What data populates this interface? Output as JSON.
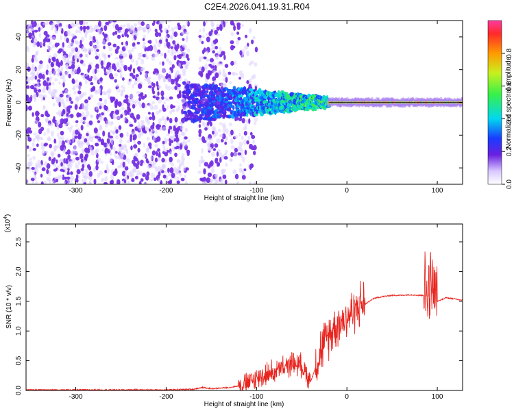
{
  "title": "C2E4.2026.041.19.31.R04",
  "colors": {
    "line": "#e8251f",
    "scatter_main": "#6a1fe0",
    "scatter_light": "#cfb6f5",
    "axis": "#000000"
  },
  "colorbar": {
    "label": "Normalized spectral amplitude",
    "ticks": [
      "0.0",
      "0.2",
      "0.4",
      "0.6",
      "0.8"
    ],
    "range": [
      0,
      1
    ],
    "colormap": "rainbow"
  },
  "chart_data": [
    {
      "type": "heatmap",
      "title": "",
      "xlabel": "Height of straight line (km)",
      "ylabel": "Frequency (Hz)",
      "xlim": [
        -355,
        128
      ],
      "ylim": [
        -50,
        50
      ],
      "xticks": [
        "-300",
        "-200",
        "-100",
        "0",
        "100"
      ],
      "yticks": [
        "-40",
        "-20",
        "0",
        "20",
        "40"
      ],
      "features": [
        {
          "name": "broadband noise",
          "x_range": [
            -355,
            -175
          ],
          "y_range": [
            -50,
            50
          ],
          "amplitude": 0.1
        },
        {
          "name": "noise stripe",
          "x_range": [
            -163,
            -133
          ],
          "y_range": [
            -50,
            50
          ],
          "amplitude": 0.1
        },
        {
          "name": "sparse noise",
          "x_range": [
            -130,
            -100
          ],
          "y_range": [
            -50,
            50
          ],
          "amplitude": 0.05
        },
        {
          "name": "converging signal",
          "x_range": [
            -180,
            -20
          ],
          "center_hz": 0,
          "spread_hz": [
            12,
            3
          ],
          "amplitude": [
            0.2,
            0.5
          ]
        },
        {
          "name": "dip",
          "x_range": [
            -60,
            -45
          ],
          "center_hz": -12,
          "amplitude": 0.3
        },
        {
          "name": "steady line",
          "x_range": [
            -20,
            128
          ],
          "center_hz": 0,
          "spread_hz": 1.5,
          "amplitude": 0.9
        }
      ]
    },
    {
      "type": "line",
      "title": "",
      "xlabel": "Height of straight line (km)",
      "ylabel": "SNR (10 * v/v)",
      "y_multiplier": "(x10",
      "y_multiplier_exp": "4",
      "y_multiplier_close": ")",
      "xlim": [
        -355,
        128
      ],
      "ylim": [
        0,
        2.8
      ],
      "xticks": [
        "-300",
        "-200",
        "-100",
        "0",
        "100"
      ],
      "yticks": [
        "0.0",
        "0.5",
        "1.0",
        "1.5",
        "2.0",
        "2.5"
      ],
      "series": [
        {
          "x": [
            -355,
            -300,
            -250,
            -200,
            -170,
            -160,
            -150,
            -130,
            -110,
            -100,
            -90,
            -80,
            -70,
            -60,
            -50,
            -40,
            -30,
            -20,
            -10,
            0,
            10,
            20,
            30,
            40,
            50,
            60,
            70,
            80,
            90,
            95,
            100,
            110,
            128
          ],
          "y": [
            0.01,
            0.01,
            0.01,
            0.01,
            0.02,
            0.05,
            0.03,
            0.05,
            0.1,
            0.18,
            0.25,
            0.3,
            0.35,
            0.45,
            0.4,
            0.15,
            0.6,
            0.9,
            1.1,
            1.2,
            1.35,
            1.45,
            1.55,
            1.58,
            1.6,
            1.6,
            1.61,
            1.6,
            1.6,
            1.7,
            1.5,
            1.56,
            1.52
          ],
          "peak_noise": [
            {
              "x": [
                -120,
                -40
              ],
              "amplitude": 0.35
            },
            {
              "x": [
                -35,
                20
              ],
              "amplitude": 0.7
            },
            {
              "x": [
                85,
                100
              ],
              "amplitude": 1.2
            }
          ]
        }
      ]
    }
  ]
}
